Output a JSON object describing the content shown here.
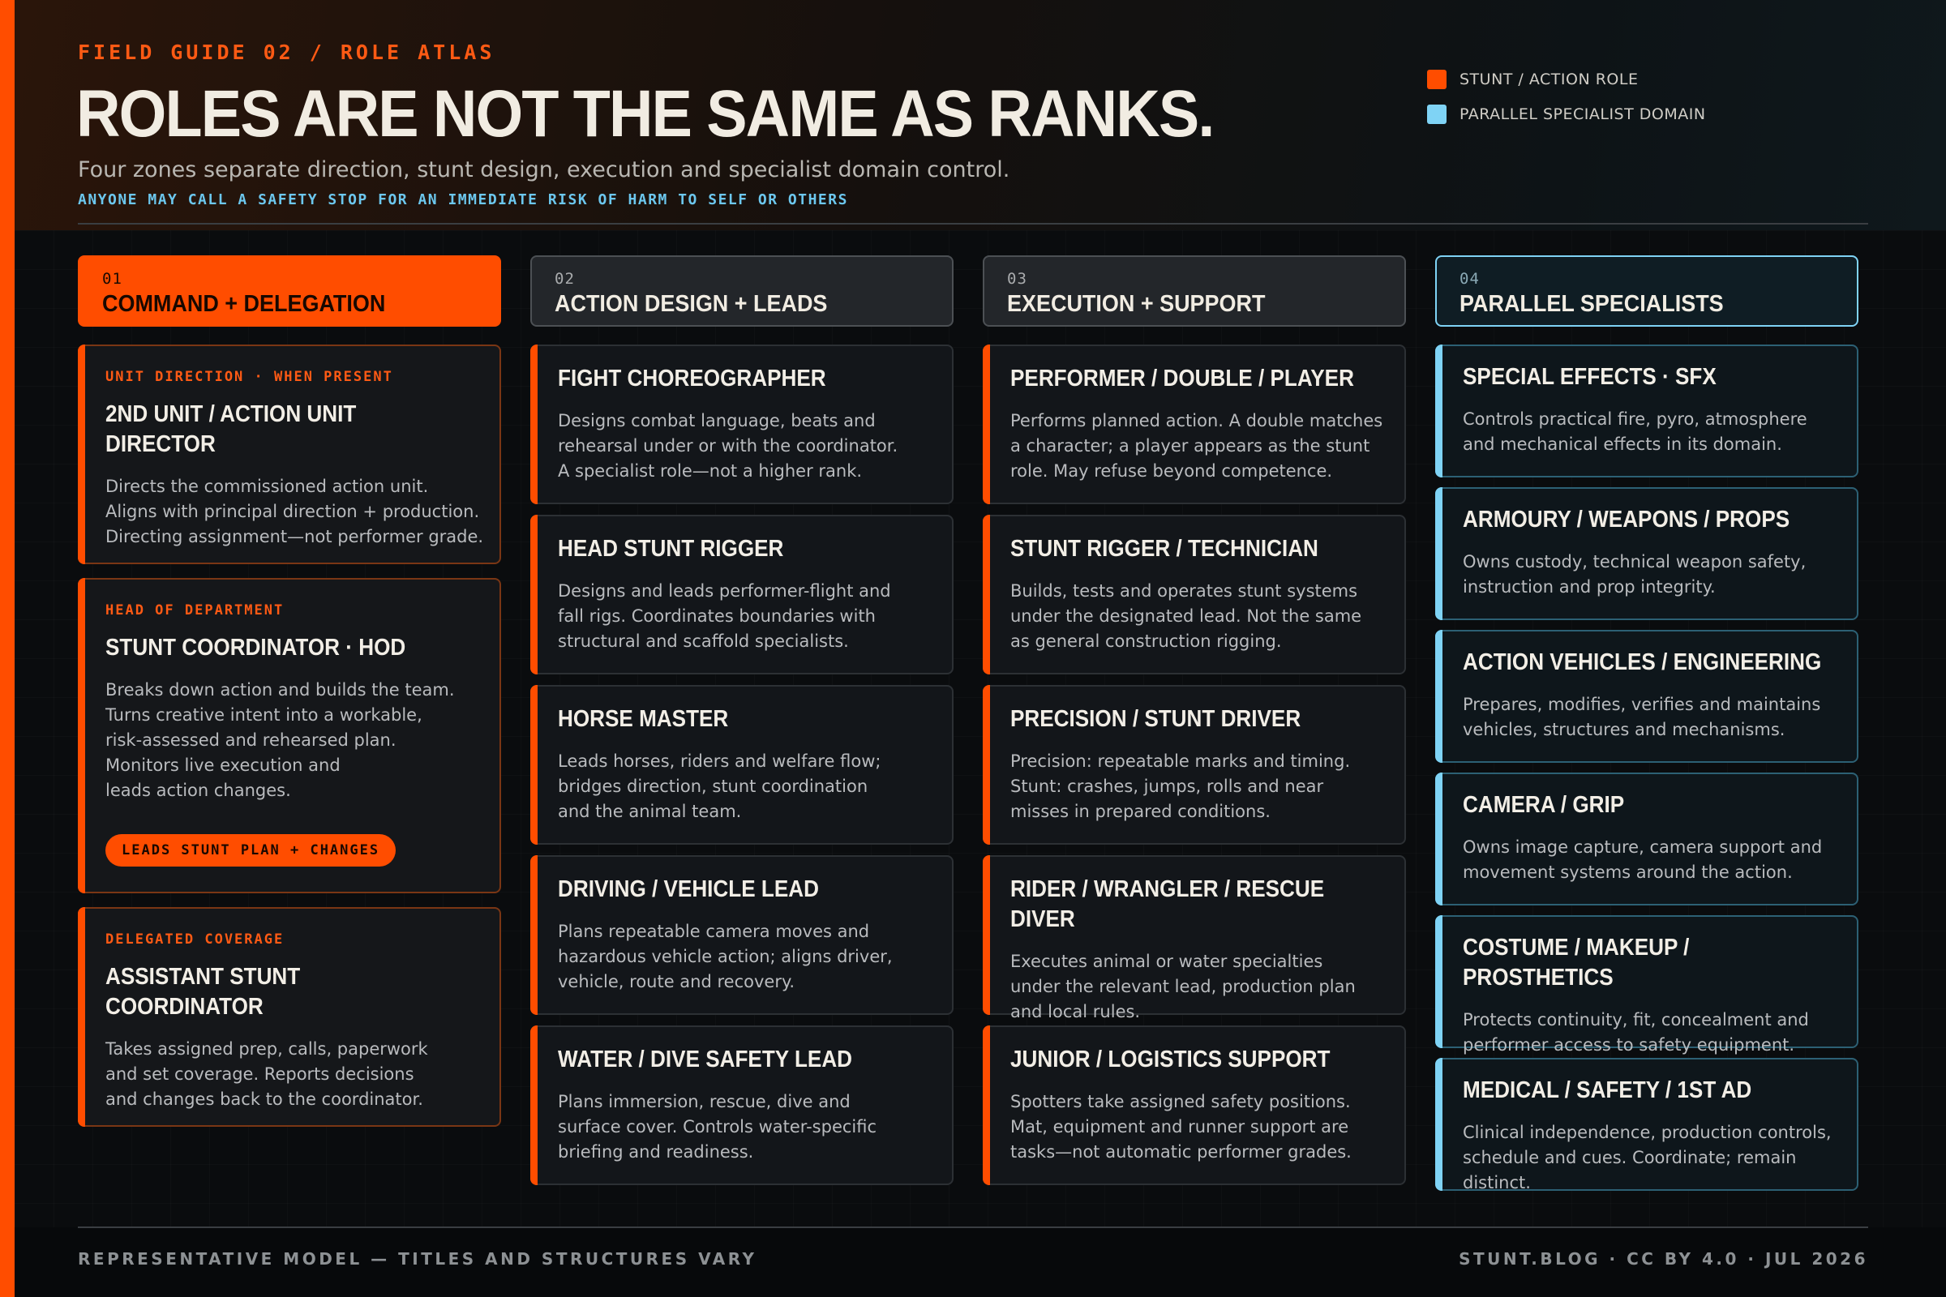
{
  "header": {
    "eyebrow": "FIELD GUIDE 02 / ROLE ATLAS",
    "title": "ROLES ARE NOT THE SAME AS RANKS.",
    "subtitle": "Four zones separate direction, stunt design, execution and specialist domain control.",
    "notice": "ANYONE MAY CALL A SAFETY STOP FOR AN IMMEDIATE RISK OF HARM TO SELF OR OTHERS"
  },
  "legend": [
    {
      "label": "STUNT / ACTION ROLE",
      "color": "#ff4d00"
    },
    {
      "label": "PARALLEL SPECIALIST DOMAIN",
      "color": "#7fd3f5"
    }
  ],
  "columns": [
    {
      "num": "01",
      "title": "COMMAND + DELEGATION"
    },
    {
      "num": "02",
      "title": "ACTION DESIGN + LEADS"
    },
    {
      "num": "03",
      "title": "EXECUTION + SUPPORT"
    },
    {
      "num": "04",
      "title": "PARALLEL SPECIALISTS"
    }
  ],
  "command": [
    {
      "tag": "UNIT DIRECTION · WHEN PRESENT",
      "title": "2ND UNIT / ACTION UNIT\nDIRECTOR",
      "desc": "Directs the commissioned action unit.\nAligns with principal direction + production.\nDirecting assignment—not performer grade."
    },
    {
      "tag": "HEAD OF DEPARTMENT",
      "title": "STUNT COORDINATOR · HOD",
      "desc": "Breaks down action and builds the team.\nTurns creative intent into a workable,\nrisk-assessed and rehearsed plan.\nMonitors live execution and\nleads action changes.",
      "pill": "LEADS STUNT PLAN + CHANGES"
    },
    {
      "tag": "DELEGATED COVERAGE",
      "title": "ASSISTANT STUNT\nCOORDINATOR",
      "desc": "Takes assigned prep, calls, paperwork\nand set coverage. Reports decisions\nand changes back to the coordinator."
    }
  ],
  "design": [
    {
      "title": "FIGHT CHOREOGRAPHER",
      "desc": "Designs combat language, beats and\nrehearsal under or with the coordinator.\nA specialist role—not a higher rank."
    },
    {
      "title": "HEAD STUNT RIGGER",
      "desc": "Designs and leads performer-flight and\nfall rigs. Coordinates boundaries with\nstructural and scaffold specialists."
    },
    {
      "title": "HORSE MASTER",
      "desc": "Leads horses, riders and welfare flow;\nbridges direction, stunt coordination\nand the animal team."
    },
    {
      "title": "DRIVING / VEHICLE LEAD",
      "desc": "Plans repeatable camera moves and\nhazardous vehicle action; aligns driver,\nvehicle, route and recovery."
    },
    {
      "title": "WATER / DIVE SAFETY LEAD",
      "desc": "Plans immersion, rescue, dive and\nsurface cover. Controls water-specific\nbriefing and readiness."
    }
  ],
  "execution": [
    {
      "title": "PERFORMER / DOUBLE / PLAYER",
      "desc": "Performs planned action. A double matches\na character; a player appears as the stunt\nrole. May refuse beyond competence."
    },
    {
      "title": "STUNT RIGGER / TECHNICIAN",
      "desc": "Builds, tests and operates stunt systems\nunder the designated lead. Not the same\nas general construction rigging."
    },
    {
      "title": "PRECISION / STUNT DRIVER",
      "desc": "Precision: repeatable marks and timing.\nStunt: crashes, jumps, rolls and near\nmisses in prepared conditions."
    },
    {
      "title": "RIDER / WRANGLER / RESCUE DIVER",
      "desc": "Executes animal or water specialties\nunder the relevant lead, production plan\nand local rules."
    },
    {
      "title": "JUNIOR / LOGISTICS SUPPORT",
      "desc": "Spotters take assigned safety positions.\nMat, equipment and runner support are\ntasks—not automatic performer grades."
    }
  ],
  "specialists": [
    {
      "title": "SPECIAL EFFECTS · SFX",
      "desc": "Controls practical fire, pyro, atmosphere\nand mechanical effects in its domain."
    },
    {
      "title": "ARMOURY / WEAPONS / PROPS",
      "desc": "Owns custody, technical weapon safety,\ninstruction and prop integrity."
    },
    {
      "title": "ACTION VEHICLES / ENGINEERING",
      "desc": "Prepares, modifies, verifies and maintains\nvehicles, structures and mechanisms."
    },
    {
      "title": "CAMERA / GRIP",
      "desc": "Owns image capture, camera support and\nmovement systems around the action."
    },
    {
      "title": "COSTUME / MAKEUP / PROSTHETICS",
      "desc": "Protects continuity, fit, concealment and\nperformer access to safety equipment."
    },
    {
      "title": "MEDICAL / SAFETY / 1ST AD",
      "desc": "Clinical independence, production controls,\nschedule and cues. Coordinate; remain distinct."
    }
  ],
  "footer": {
    "left": "REPRESENTATIVE MODEL — TITLES AND STRUCTURES VARY",
    "right": "STUNT.BLOG · CC BY 4.0 · JUL 2026"
  }
}
